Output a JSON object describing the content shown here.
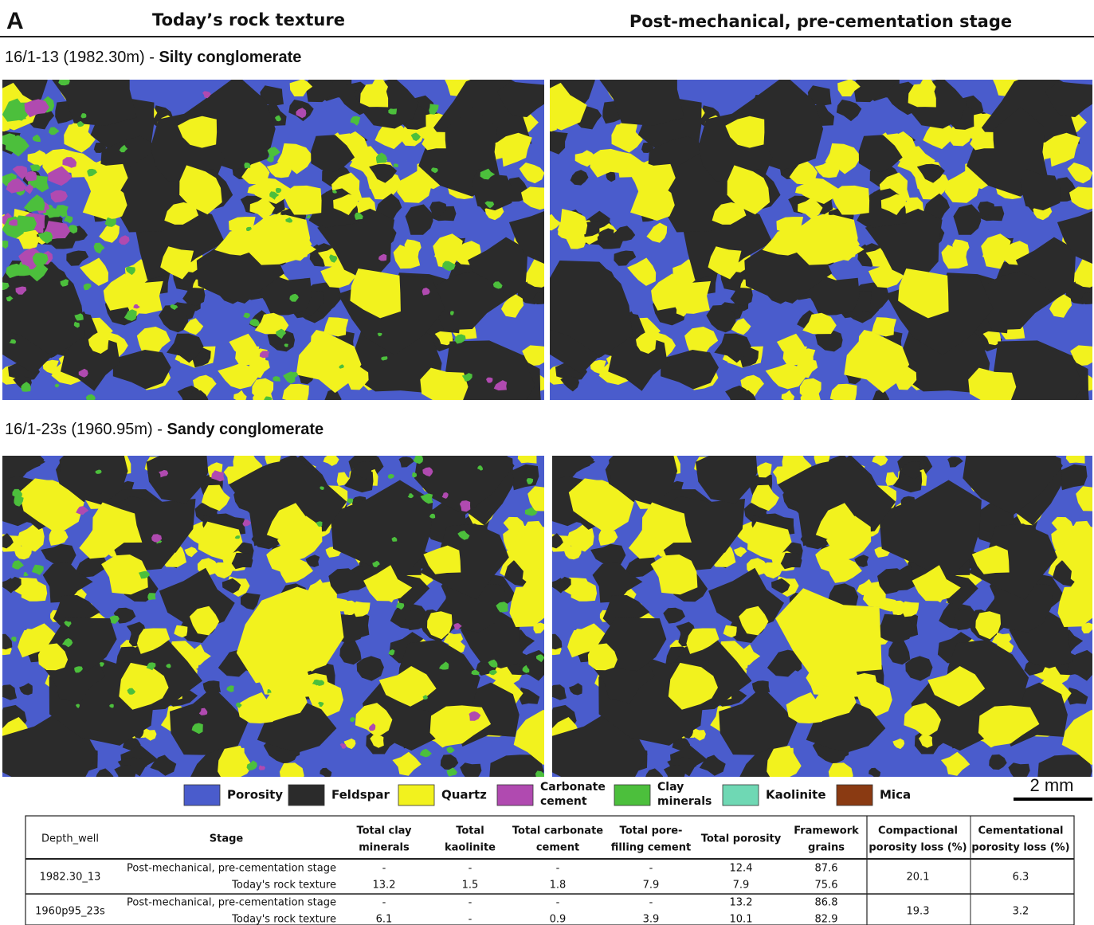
{
  "figure": {
    "label": "A",
    "column_headers": [
      "Today’s rock texture",
      "Post-mechanical, pre-cementation stage"
    ],
    "samples": [
      {
        "id": "16/1-13 (1982.30m) - ",
        "lithology": "Silty conglomerate"
      },
      {
        "id": "16/1-23s (1960.95m) - ",
        "lithology": "Sandy conglomerate"
      }
    ],
    "legend": [
      {
        "name": "Porosity",
        "color": "#4a5ccc"
      },
      {
        "name": "Feldspar",
        "color": "#2b2b2b"
      },
      {
        "name": "Quartz",
        "color": "#f2f21e"
      },
      {
        "name": "Carbonate cement",
        "color": "#b04ab0"
      },
      {
        "name": "Clay minerals",
        "color": "#4cbf3c"
      },
      {
        "name": "Kaolinite",
        "color": "#6fd8b4"
      },
      {
        "name": "Mica",
        "color": "#8a3a12"
      }
    ],
    "scale_bar": "2 mm"
  },
  "table": {
    "headers": [
      [
        "Depth_well"
      ],
      [
        "Stage"
      ],
      [
        "Total clay",
        "minerals"
      ],
      [
        "Total",
        "kaolinite"
      ],
      [
        "Total carbonate",
        "cement"
      ],
      [
        "Total pore-",
        "filling cement"
      ],
      [
        "Total porosity"
      ],
      [
        "Framework",
        "grains"
      ],
      [
        "Compactional",
        "porosity loss (%)"
      ],
      [
        "Cementational",
        "porosity loss (%)"
      ]
    ],
    "groups": [
      {
        "depth": "1982.30_13",
        "rows": [
          [
            "Post-mechanical, pre-cementation stage",
            "-",
            "-",
            "-",
            "-",
            "12.4",
            "87.6"
          ],
          [
            "Today's rock texture",
            "13.2",
            "1.5",
            "1.8",
            "7.9",
            "7.9",
            "75.6"
          ]
        ],
        "compactional": "20.1",
        "cementational": "6.3"
      },
      {
        "depth": "1960p95_23s",
        "rows": [
          [
            "Post-mechanical, pre-cementation stage",
            "-",
            "-",
            "-",
            "-",
            "13.2",
            "86.8"
          ],
          [
            "Today's rock texture",
            "6.1",
            "-",
            "0.9",
            "3.9",
            "10.1",
            "82.9"
          ]
        ],
        "compactional": "19.3",
        "cementational": "3.2"
      }
    ]
  }
}
